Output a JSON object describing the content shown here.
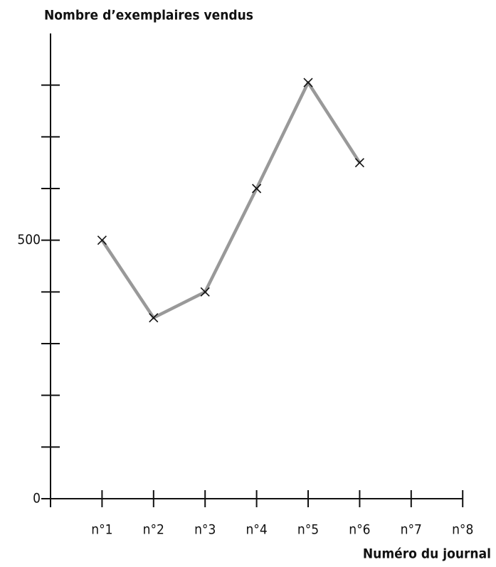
{
  "chart_data": {
    "type": "line",
    "y_label": "Nombre d’exemplaires vendus",
    "x_label": "Numéro du journal",
    "categories": [
      "n°1",
      "n°2",
      "n°3",
      "n°4",
      "n°5",
      "n°6",
      "n°7",
      "n°8"
    ],
    "series": [
      {
        "color": "#999999",
        "values": [
          500,
          350,
          400,
          600,
          805,
          650,
          null,
          null
        ]
      }
    ],
    "ylim": [
      0,
      900
    ],
    "yticks": [
      0,
      {
        "value": 100,
        "label": null
      },
      {
        "value": 200,
        "label": null
      },
      {
        "value": 300,
        "label": null
      },
      {
        "value": 400,
        "label": null
      },
      500,
      {
        "value": 600,
        "label": null
      },
      {
        "value": 700,
        "label": null
      },
      {
        "value": 800,
        "label": null
      }
    ],
    "grid": false
  }
}
